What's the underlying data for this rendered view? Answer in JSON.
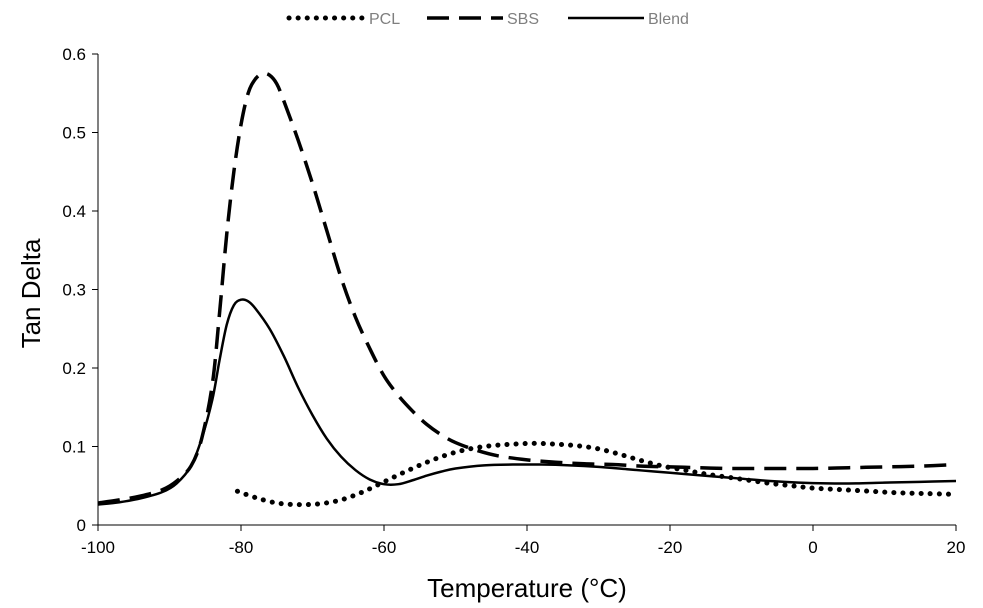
{
  "chart_data": {
    "type": "line",
    "title": "",
    "xlabel": "Temperature (°C)",
    "ylabel": "Tan Delta",
    "xlim": [
      -100,
      20
    ],
    "ylim": [
      0,
      0.6
    ],
    "x_ticks": [
      -100,
      -80,
      -60,
      -40,
      -20,
      0,
      20
    ],
    "y_ticks": [
      0,
      0.1,
      0.2,
      0.3,
      0.4,
      0.5,
      0.6
    ],
    "x_tick_labels": [
      "-100",
      "-80",
      "-60",
      "-40",
      "-20",
      "0",
      "20"
    ],
    "y_tick_labels": [
      "0",
      "0.1",
      "0.2",
      "0.3",
      "0.4",
      "0.5",
      "0.6"
    ],
    "grid": false,
    "legend_position": "top",
    "series": [
      {
        "name": "PCL",
        "style": "dotted",
        "color": "#000000",
        "points": [
          [
            -80.5,
            0.043
          ],
          [
            -78,
            0.035
          ],
          [
            -75,
            0.028
          ],
          [
            -72,
            0.026
          ],
          [
            -69,
            0.027
          ],
          [
            -66,
            0.032
          ],
          [
            -63,
            0.042
          ],
          [
            -60,
            0.055
          ],
          [
            -57,
            0.068
          ],
          [
            -54,
            0.08
          ],
          [
            -51,
            0.09
          ],
          [
            -48,
            0.097
          ],
          [
            -45,
            0.101
          ],
          [
            -42,
            0.103
          ],
          [
            -39,
            0.104
          ],
          [
            -36,
            0.103
          ],
          [
            -33,
            0.101
          ],
          [
            -30,
            0.097
          ],
          [
            -27,
            0.09
          ],
          [
            -24,
            0.082
          ],
          [
            -21,
            0.075
          ],
          [
            -18,
            0.07
          ],
          [
            -15,
            0.065
          ],
          [
            -12,
            0.061
          ],
          [
            -9,
            0.057
          ],
          [
            -6,
            0.053
          ],
          [
            -3,
            0.05
          ],
          [
            0,
            0.047
          ],
          [
            4,
            0.045
          ],
          [
            8,
            0.043
          ],
          [
            12,
            0.041
          ],
          [
            16,
            0.04
          ],
          [
            20,
            0.039
          ]
        ]
      },
      {
        "name": "SBS",
        "style": "dashed",
        "color": "#000000",
        "points": [
          [
            -100,
            0.028
          ],
          [
            -97,
            0.032
          ],
          [
            -94,
            0.037
          ],
          [
            -91,
            0.045
          ],
          [
            -89,
            0.056
          ],
          [
            -87,
            0.075
          ],
          [
            -85.5,
            0.11
          ],
          [
            -84,
            0.18
          ],
          [
            -83,
            0.27
          ],
          [
            -82,
            0.37
          ],
          [
            -81,
            0.45
          ],
          [
            -80,
            0.51
          ],
          [
            -79,
            0.55
          ],
          [
            -78,
            0.568
          ],
          [
            -77,
            0.575
          ],
          [
            -76,
            0.573
          ],
          [
            -75,
            0.562
          ],
          [
            -74,
            0.54
          ],
          [
            -72,
            0.49
          ],
          [
            -70,
            0.435
          ],
          [
            -68,
            0.375
          ],
          [
            -66,
            0.315
          ],
          [
            -64,
            0.265
          ],
          [
            -62,
            0.225
          ],
          [
            -60,
            0.19
          ],
          [
            -58,
            0.165
          ],
          [
            -56,
            0.145
          ],
          [
            -54,
            0.128
          ],
          [
            -52,
            0.115
          ],
          [
            -50,
            0.105
          ],
          [
            -47,
            0.095
          ],
          [
            -44,
            0.088
          ],
          [
            -40,
            0.083
          ],
          [
            -36,
            0.08
          ],
          [
            -32,
            0.078
          ],
          [
            -28,
            0.077
          ],
          [
            -24,
            0.075
          ],
          [
            -20,
            0.074
          ],
          [
            -16,
            0.073
          ],
          [
            -12,
            0.072
          ],
          [
            -8,
            0.072
          ],
          [
            -4,
            0.072
          ],
          [
            0,
            0.072
          ],
          [
            5,
            0.073
          ],
          [
            10,
            0.074
          ],
          [
            15,
            0.075
          ],
          [
            20,
            0.077
          ]
        ]
      },
      {
        "name": "Blend",
        "style": "solid",
        "color": "#000000",
        "points": [
          [
            -100,
            0.026
          ],
          [
            -97,
            0.029
          ],
          [
            -94,
            0.034
          ],
          [
            -91,
            0.042
          ],
          [
            -89,
            0.053
          ],
          [
            -87,
            0.075
          ],
          [
            -85.5,
            0.11
          ],
          [
            -84,
            0.16
          ],
          [
            -83,
            0.21
          ],
          [
            -82,
            0.255
          ],
          [
            -81,
            0.28
          ],
          [
            -80,
            0.287
          ],
          [
            -79,
            0.285
          ],
          [
            -78,
            0.276
          ],
          [
            -76,
            0.25
          ],
          [
            -74,
            0.215
          ],
          [
            -72,
            0.175
          ],
          [
            -70,
            0.14
          ],
          [
            -68,
            0.11
          ],
          [
            -66,
            0.087
          ],
          [
            -64,
            0.07
          ],
          [
            -62,
            0.058
          ],
          [
            -60,
            0.052
          ],
          [
            -58,
            0.052
          ],
          [
            -56,
            0.057
          ],
          [
            -54,
            0.063
          ],
          [
            -52,
            0.068
          ],
          [
            -50,
            0.072
          ],
          [
            -46,
            0.076
          ],
          [
            -42,
            0.077
          ],
          [
            -38,
            0.077
          ],
          [
            -34,
            0.076
          ],
          [
            -30,
            0.074
          ],
          [
            -26,
            0.071
          ],
          [
            -22,
            0.068
          ],
          [
            -18,
            0.065
          ],
          [
            -14,
            0.062
          ],
          [
            -10,
            0.059
          ],
          [
            -6,
            0.056
          ],
          [
            -2,
            0.054
          ],
          [
            2,
            0.053
          ],
          [
            6,
            0.053
          ],
          [
            10,
            0.054
          ],
          [
            15,
            0.055
          ],
          [
            20,
            0.056
          ]
        ]
      }
    ]
  }
}
